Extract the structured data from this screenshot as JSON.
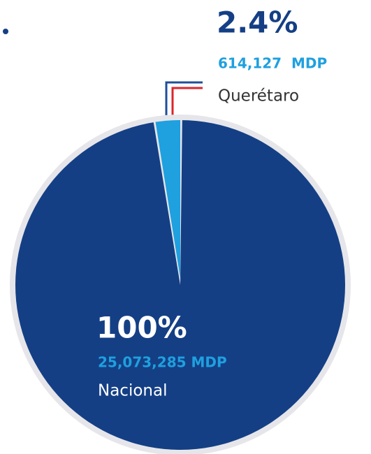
{
  "chart_data": {
    "type": "pie",
    "categories": [
      "Querétaro",
      "Nacional"
    ],
    "values": [
      2.4,
      100
    ],
    "value_labels": [
      "2.4%",
      "100%"
    ],
    "amount_labels": [
      "614,127  MDP",
      "25,073,285 MDP"
    ],
    "colors": [
      "#1fa0df",
      "#143f85"
    ]
  }
}
